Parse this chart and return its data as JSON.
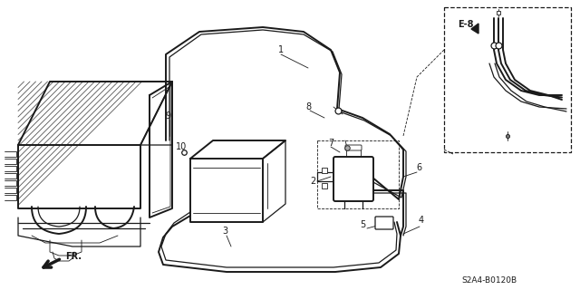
{
  "bg_color": "#ffffff",
  "line_color": "#1a1a1a",
  "part_label_color": "#1a1a1a",
  "diagram_code": "S2A4-B0120B",
  "fig_width": 6.4,
  "fig_height": 3.2,
  "dpi": 100
}
